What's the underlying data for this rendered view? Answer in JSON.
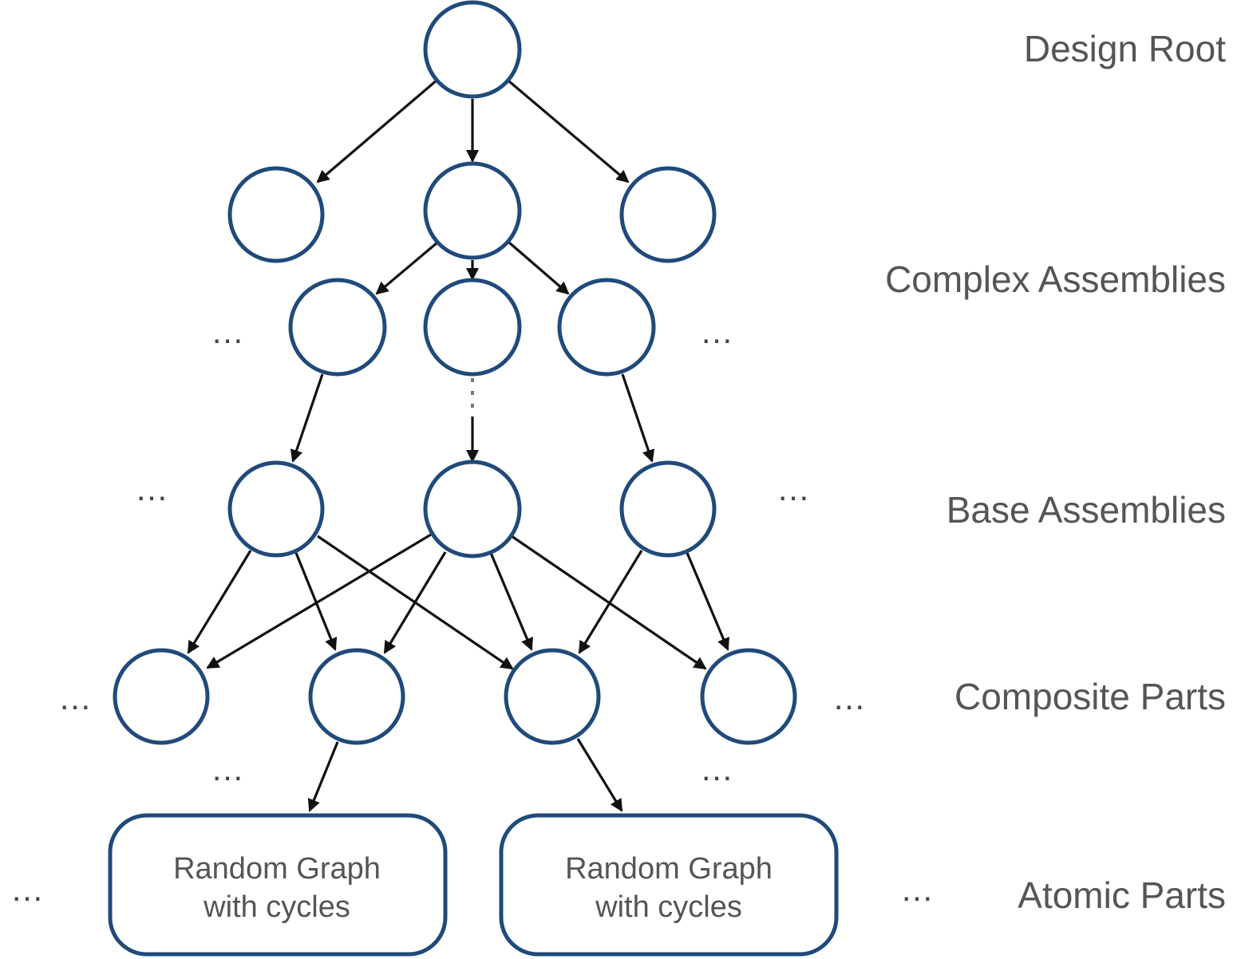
{
  "levels": {
    "design_root": "Design Root",
    "complex_assemblies": "Complex Assemblies",
    "base_assemblies": "Base Assemblies",
    "composite_parts": "Composite Parts",
    "atomic_parts": "Atomic Parts"
  },
  "atomic_boxes": [
    {
      "line1": "Random Graph",
      "line2": "with cycles"
    },
    {
      "line1": "Random Graph",
      "line2": "with cycles"
    }
  ],
  "ellipsis": "…",
  "colors": {
    "node_stroke": "#1f4a7a",
    "edge": "#111111",
    "label_text": "#555555"
  }
}
